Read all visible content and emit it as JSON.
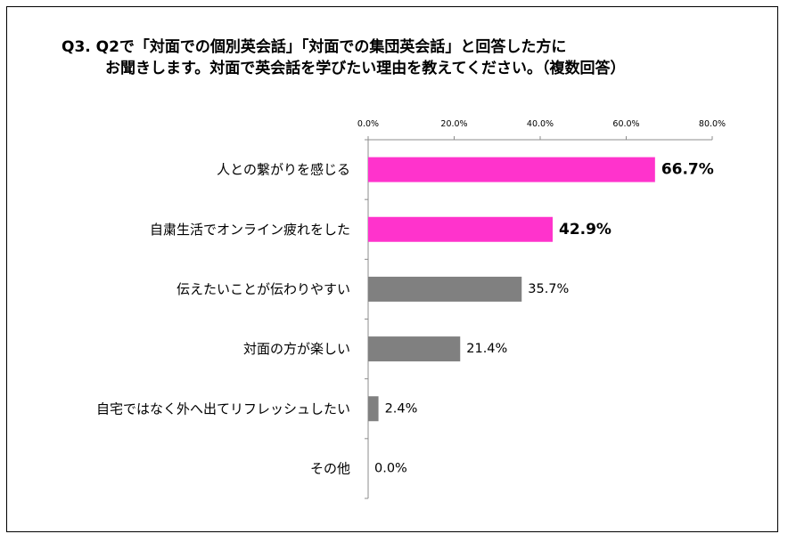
{
  "title": {
    "line1": "Q3.  Q2で「対面での個別英会話」「対面での集団英会話」と回答した方に",
    "line2": "お聞きします。対面で英会話を学びたい理由を教えてください。（複数回答）"
  },
  "chart_data": {
    "type": "bar",
    "orientation": "horizontal",
    "categories": [
      "人との繋がりを感じる",
      "自粛生活でオンライン疲れをした",
      "伝えたいことが伝わりやすい",
      "対面の方が楽しい",
      "自宅ではなく外へ出てリフレッシュしたい",
      "その他"
    ],
    "values": [
      66.7,
      42.9,
      35.7,
      21.4,
      2.4,
      0.0
    ],
    "value_labels": [
      "66.7%",
      "42.9%",
      "35.7%",
      "21.4%",
      "2.4%",
      "0.0%"
    ],
    "highlighted": [
      true,
      true,
      false,
      false,
      false,
      false
    ],
    "xlim": [
      0,
      80
    ],
    "xticks": [
      0,
      20,
      40,
      60,
      80
    ],
    "xtick_labels": [
      "0.0%",
      "20.0%",
      "40.0%",
      "60.0%",
      "80.0%"
    ],
    "axis_position": "top",
    "grid": false,
    "legend": "none",
    "colors": {
      "highlight": "#FF33CC",
      "default": "#808080",
      "axis": "#8C8C8C"
    }
  }
}
